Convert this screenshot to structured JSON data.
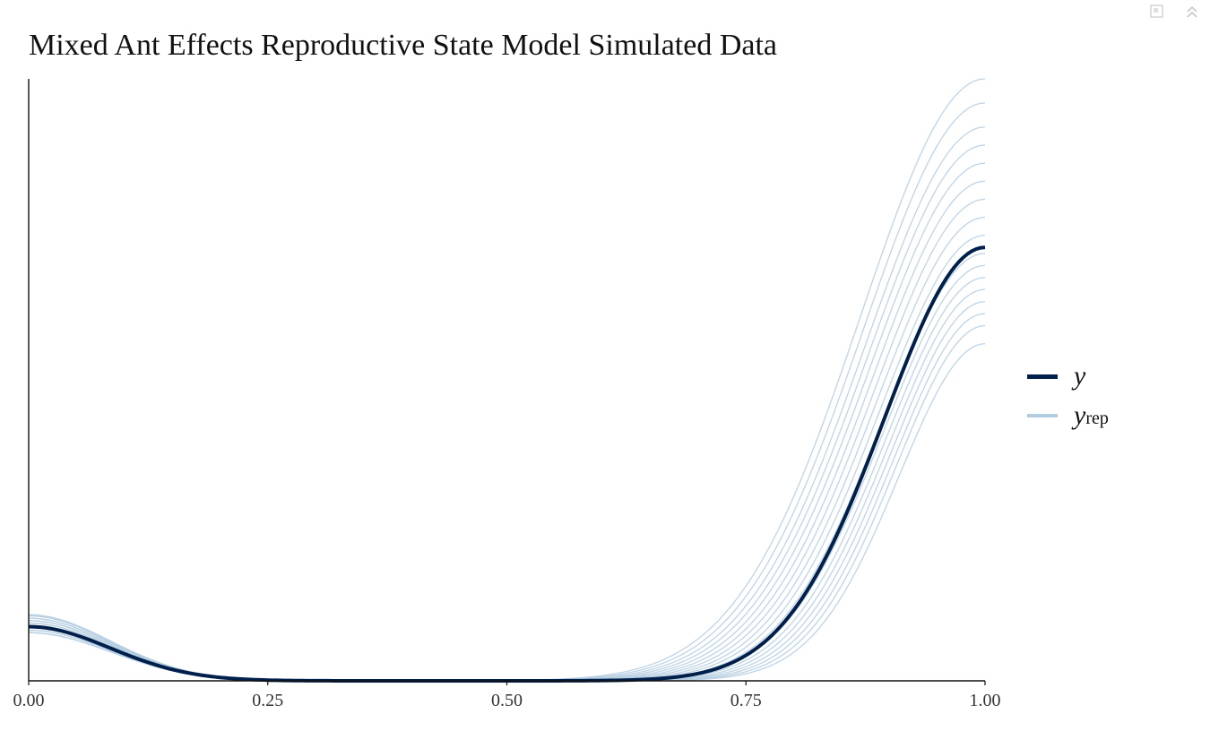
{
  "toolbar": {
    "icons": [
      "copy-icon",
      "collapse-chevrons-icon"
    ]
  },
  "chart_data": {
    "type": "line",
    "title": "Mixed Ant Effects Reproductive State Model Simulated Data",
    "xlabel": "",
    "ylabel": "",
    "xlim": [
      0,
      1
    ],
    "ylim": [
      0,
      5.0
    ],
    "x_ticks": [
      "0.00",
      "0.25",
      "0.50",
      "0.75",
      "1.00"
    ],
    "y_ticks": [],
    "grid": false,
    "legend_position": "right",
    "legend": [
      {
        "symbol": "y",
        "subscript": ""
      },
      {
        "symbol": "y",
        "subscript": "rep"
      }
    ],
    "colors": {
      "y": "#011f4b",
      "yrep": "#b3cde0"
    },
    "observed": {
      "name": "y",
      "left_mode_height": 0.45,
      "right_end_height": 3.6,
      "x": [
        0,
        0.05,
        0.1,
        0.15,
        0.2,
        0.25,
        0.3,
        0.4,
        0.5,
        0.6,
        0.65,
        0.7,
        0.75,
        0.8,
        0.85,
        0.9,
        0.95,
        1.0
      ],
      "y": [
        0.45,
        0.41,
        0.3,
        0.17,
        0.07,
        0.02,
        0.0,
        0.0,
        0.0,
        0.0,
        0.0,
        0.01,
        0.08,
        0.3,
        0.97,
        2.15,
        3.19,
        3.6
      ]
    },
    "replicates": {
      "name": "y_rep",
      "left_mode_heights": [
        0.4,
        0.42,
        0.44,
        0.46,
        0.48,
        0.5,
        0.52,
        0.54,
        0.55
      ],
      "right_end_heights": [
        2.8,
        2.95,
        3.05,
        3.15,
        3.25,
        3.35,
        3.45,
        3.55,
        3.7,
        3.85,
        4.0,
        4.15,
        4.3,
        4.45,
        4.6,
        4.8,
        5.0
      ],
      "right_sigma_range": [
        0.09,
        0.13
      ]
    }
  }
}
